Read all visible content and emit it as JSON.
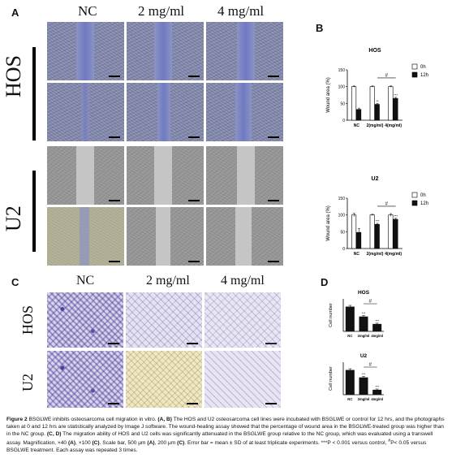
{
  "figure": {
    "panel_labels": {
      "a": "A",
      "b": "B",
      "c": "C",
      "d": "D"
    },
    "col_headers": [
      "NC",
      "2 mg/ml",
      "4 mg/ml"
    ],
    "row_labels": {
      "hos": "HOS",
      "u2": "U2"
    },
    "caption": {
      "label": "Figure 2",
      "text_1": " BSGLWE inhibits osteosarcoma cell migration in vitro. ",
      "bold_1": "(A, B)",
      "text_2": " The HOS and U2 osteosarcoma cell lines were incubated with BSGLWE or control for 12 hrs, and the photographs taken at 0 and 12 hrs are statistically analyzed by Image J software. The wound-healing assay showed that the percentage of wound area in the BSGLWE-treated group was higher than in the NC group. ",
      "bold_2": "(C, D)",
      "text_3": " The migration ability of HOS and U2 cells was significantly attenuated in the BSGLWE group relative to the NC group, which was evaluated using a transwell assay. Magnification, ×40 ",
      "bold_3": "(A)",
      "text_4": ", ×100 ",
      "bold_4": "(C)",
      "text_5": ". Scale bar, 500 μm ",
      "bold_5": "(A)",
      "text_6": ", 200 μm ",
      "bold_6": "(C)",
      "text_7": ". Error bar = mean ± SD of at least triplicate experiments. ***P < 0.001 versus control, ",
      "hash": "#",
      "text_8": "P< 0.05 versus BSGLWE treatment. Each assay was repeated 3 times."
    }
  },
  "chart_data": [
    {
      "panel": "B",
      "type": "bar",
      "title": "HOS",
      "ylabel": "Wound area (%)",
      "ylim": [
        0,
        150
      ],
      "yticks": [
        "0",
        "50",
        "100",
        "150"
      ],
      "categories": [
        "NC",
        "2(mg/ml)",
        "4(mg/ml)"
      ],
      "series": [
        {
          "name": "0h",
          "color": "#ffffff",
          "values": [
            100,
            100,
            100
          ],
          "err": [
            2,
            2,
            2
          ]
        },
        {
          "name": "12h",
          "color": "#111111",
          "values": [
            32,
            47,
            65
          ],
          "err": [
            4,
            3,
            3
          ]
        }
      ],
      "annotations": {
        "stars": [
          "**",
          "***"
        ],
        "significance": "#"
      },
      "legend": "top-right"
    },
    {
      "panel": "B",
      "type": "bar",
      "title": "U2",
      "ylabel": "Wound area (%)",
      "ylim": [
        0,
        150
      ],
      "yticks": [
        "0",
        "50",
        "100",
        "150"
      ],
      "categories": [
        "NC",
        "2(mg/ml)",
        "4(mg/ml)"
      ],
      "series": [
        {
          "name": "0h",
          "color": "#ffffff",
          "values": [
            100,
            100,
            100
          ],
          "err": [
            5,
            2,
            4
          ]
        },
        {
          "name": "12h",
          "color": "#111111",
          "values": [
            48,
            72,
            87
          ],
          "err": [
            12,
            3,
            3
          ]
        }
      ],
      "annotations": {
        "stars": [
          "***",
          "***"
        ],
        "significance": "#"
      },
      "legend": "top-right"
    },
    {
      "panel": "D",
      "type": "bar",
      "title": "HOS",
      "ylabel": "Cell number",
      "categories": [
        "NC",
        "2mg/ml",
        "4mg/ml"
      ],
      "series": [
        {
          "name": "",
          "color": "#111111",
          "values": [
            100,
            60,
            30
          ],
          "err": [
            5,
            4,
            3
          ]
        }
      ],
      "annotations": {
        "stars": [
          "***",
          "***"
        ],
        "significance": "#"
      }
    },
    {
      "panel": "D",
      "type": "bar",
      "title": "U2",
      "ylabel": "Cell number",
      "categories": [
        "NC",
        "2mg/ml",
        "4mg/ml"
      ],
      "series": [
        {
          "name": "",
          "color": "#111111",
          "values": [
            100,
            70,
            20
          ],
          "err": [
            5,
            4,
            3
          ]
        }
      ],
      "annotations": {
        "stars": [
          "***",
          "***"
        ],
        "significance": "#"
      }
    }
  ]
}
